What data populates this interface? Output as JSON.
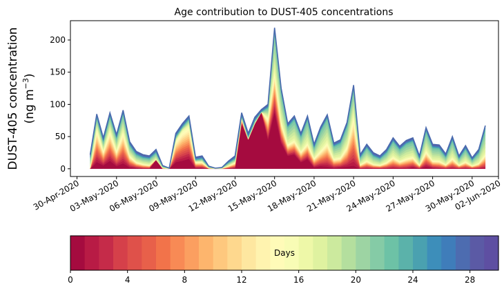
{
  "chart_data": {
    "type": "area",
    "title": "Age contribution to DUST-405 concentrations",
    "ylabel_line1": "DUST-405 concentration",
    "ylabel_line2": "(ng m",
    "ylabel_unit_sup": "−3",
    "ylabel_close": ")",
    "xlabel": "",
    "ylim": [
      -12,
      230
    ],
    "yticks": [
      0,
      50,
      100,
      150,
      200
    ],
    "xlim": [
      -1.5,
      31.0
    ],
    "xticks": [
      {
        "pos": -1.0,
        "label": "30-Apr-2020"
      },
      {
        "pos": 2.0,
        "label": "03-May-2020"
      },
      {
        "pos": 5.0,
        "label": "06-May-2020"
      },
      {
        "pos": 8.0,
        "label": "09-May-2020"
      },
      {
        "pos": 11.0,
        "label": "12-May-2020"
      },
      {
        "pos": 14.0,
        "label": "15-May-2020"
      },
      {
        "pos": 17.0,
        "label": "18-May-2020"
      },
      {
        "pos": 20.0,
        "label": "21-May-2020"
      },
      {
        "pos": 23.0,
        "label": "24-May-2020"
      },
      {
        "pos": 26.0,
        "label": "27-May-2020"
      },
      {
        "pos": 29.0,
        "label": "30-May-2020"
      },
      {
        "pos": 32.0,
        "label": "02-Jun-2020"
      }
    ],
    "x_days_since_may1": [
      0,
      0.5,
      1,
      1.5,
      2,
      2.5,
      3,
      3.5,
      4,
      4.5,
      5,
      5.5,
      6,
      6.5,
      7,
      7.5,
      8,
      8.5,
      9,
      9.5,
      10,
      10.5,
      11,
      11.5,
      12,
      12.5,
      13,
      13.5,
      14,
      14.5,
      15,
      15.5,
      16,
      16.5,
      17,
      17.5,
      18,
      18.5,
      19,
      19.5,
      20,
      20.5,
      21,
      21.5,
      22,
      22.5,
      23,
      23.5,
      24,
      24.5,
      25,
      25.5,
      26,
      26.5,
      27,
      27.5,
      28,
      28.5,
      29,
      29.5,
      30
    ],
    "total": [
      22,
      85,
      48,
      87,
      53,
      91,
      42,
      27,
      22,
      20,
      30,
      5,
      1,
      55,
      70,
      82,
      18,
      20,
      4,
      1,
      2,
      12,
      20,
      87,
      55,
      80,
      92,
      100,
      219,
      125,
      70,
      82,
      55,
      82,
      38,
      65,
      84,
      40,
      45,
      72,
      130,
      22,
      38,
      25,
      20,
      30,
      48,
      35,
      44,
      48,
      20,
      64,
      38,
      37,
      23,
      50,
      20,
      36,
      17,
      30,
      67
    ],
    "young_core": [
      0,
      10,
      5,
      12,
      4,
      8,
      2,
      1,
      0,
      0,
      14,
      0,
      0,
      10,
      12,
      15,
      1,
      1,
      0,
      0,
      0,
      0,
      1,
      70,
      45,
      70,
      88,
      45,
      88,
      40,
      20,
      22,
      10,
      15,
      2,
      4,
      3,
      1,
      2,
      3,
      4,
      0,
      0,
      0,
      0,
      0,
      0,
      0,
      0,
      2,
      0,
      3,
      1,
      0,
      0,
      0,
      0,
      0,
      0,
      0,
      0
    ],
    "mid_fraction": [
      0.05,
      0.75,
      0.6,
      0.7,
      0.55,
      0.65,
      0.5,
      0.4,
      0.35,
      0.3,
      0.45,
      0.2,
      0.1,
      0.8,
      0.85,
      0.82,
      0.6,
      0.55,
      0.3,
      0.2,
      0.2,
      0.4,
      0.5,
      0.9,
      0.85,
      0.88,
      0.9,
      0.8,
      0.7,
      0.6,
      0.55,
      0.55,
      0.5,
      0.5,
      0.45,
      0.45,
      0.5,
      0.4,
      0.4,
      0.5,
      0.65,
      0.3,
      0.35,
      0.3,
      0.3,
      0.35,
      0.4,
      0.35,
      0.38,
      0.4,
      0.3,
      0.45,
      0.35,
      0.35,
      0.3,
      0.35,
      0.3,
      0.33,
      0.28,
      0.3,
      0.35
    ],
    "colorbar": {
      "label": "Days",
      "min": 0,
      "max": 30,
      "ticks": [
        0,
        4,
        8,
        12,
        16,
        20,
        24,
        28
      ],
      "colors": [
        "#a50b3f",
        "#b81b45",
        "#c52b49",
        "#d5404a",
        "#df514a",
        "#e8604a",
        "#f2734a",
        "#f88a55",
        "#fb9f60",
        "#fdb56d",
        "#fec87e",
        "#fed88e",
        "#fee7a0",
        "#fff3af",
        "#fffbb8",
        "#f8fcb5",
        "#eef8a8",
        "#dff2a0",
        "#ccea9e",
        "#b4df9e",
        "#9dd4a3",
        "#85cba6",
        "#6dc2a6",
        "#5bb2aa",
        "#4aa1b0",
        "#3d8eba",
        "#3f7dba",
        "#4d6cb0",
        "#5b5aa5",
        "#5e4fa2"
      ]
    }
  }
}
